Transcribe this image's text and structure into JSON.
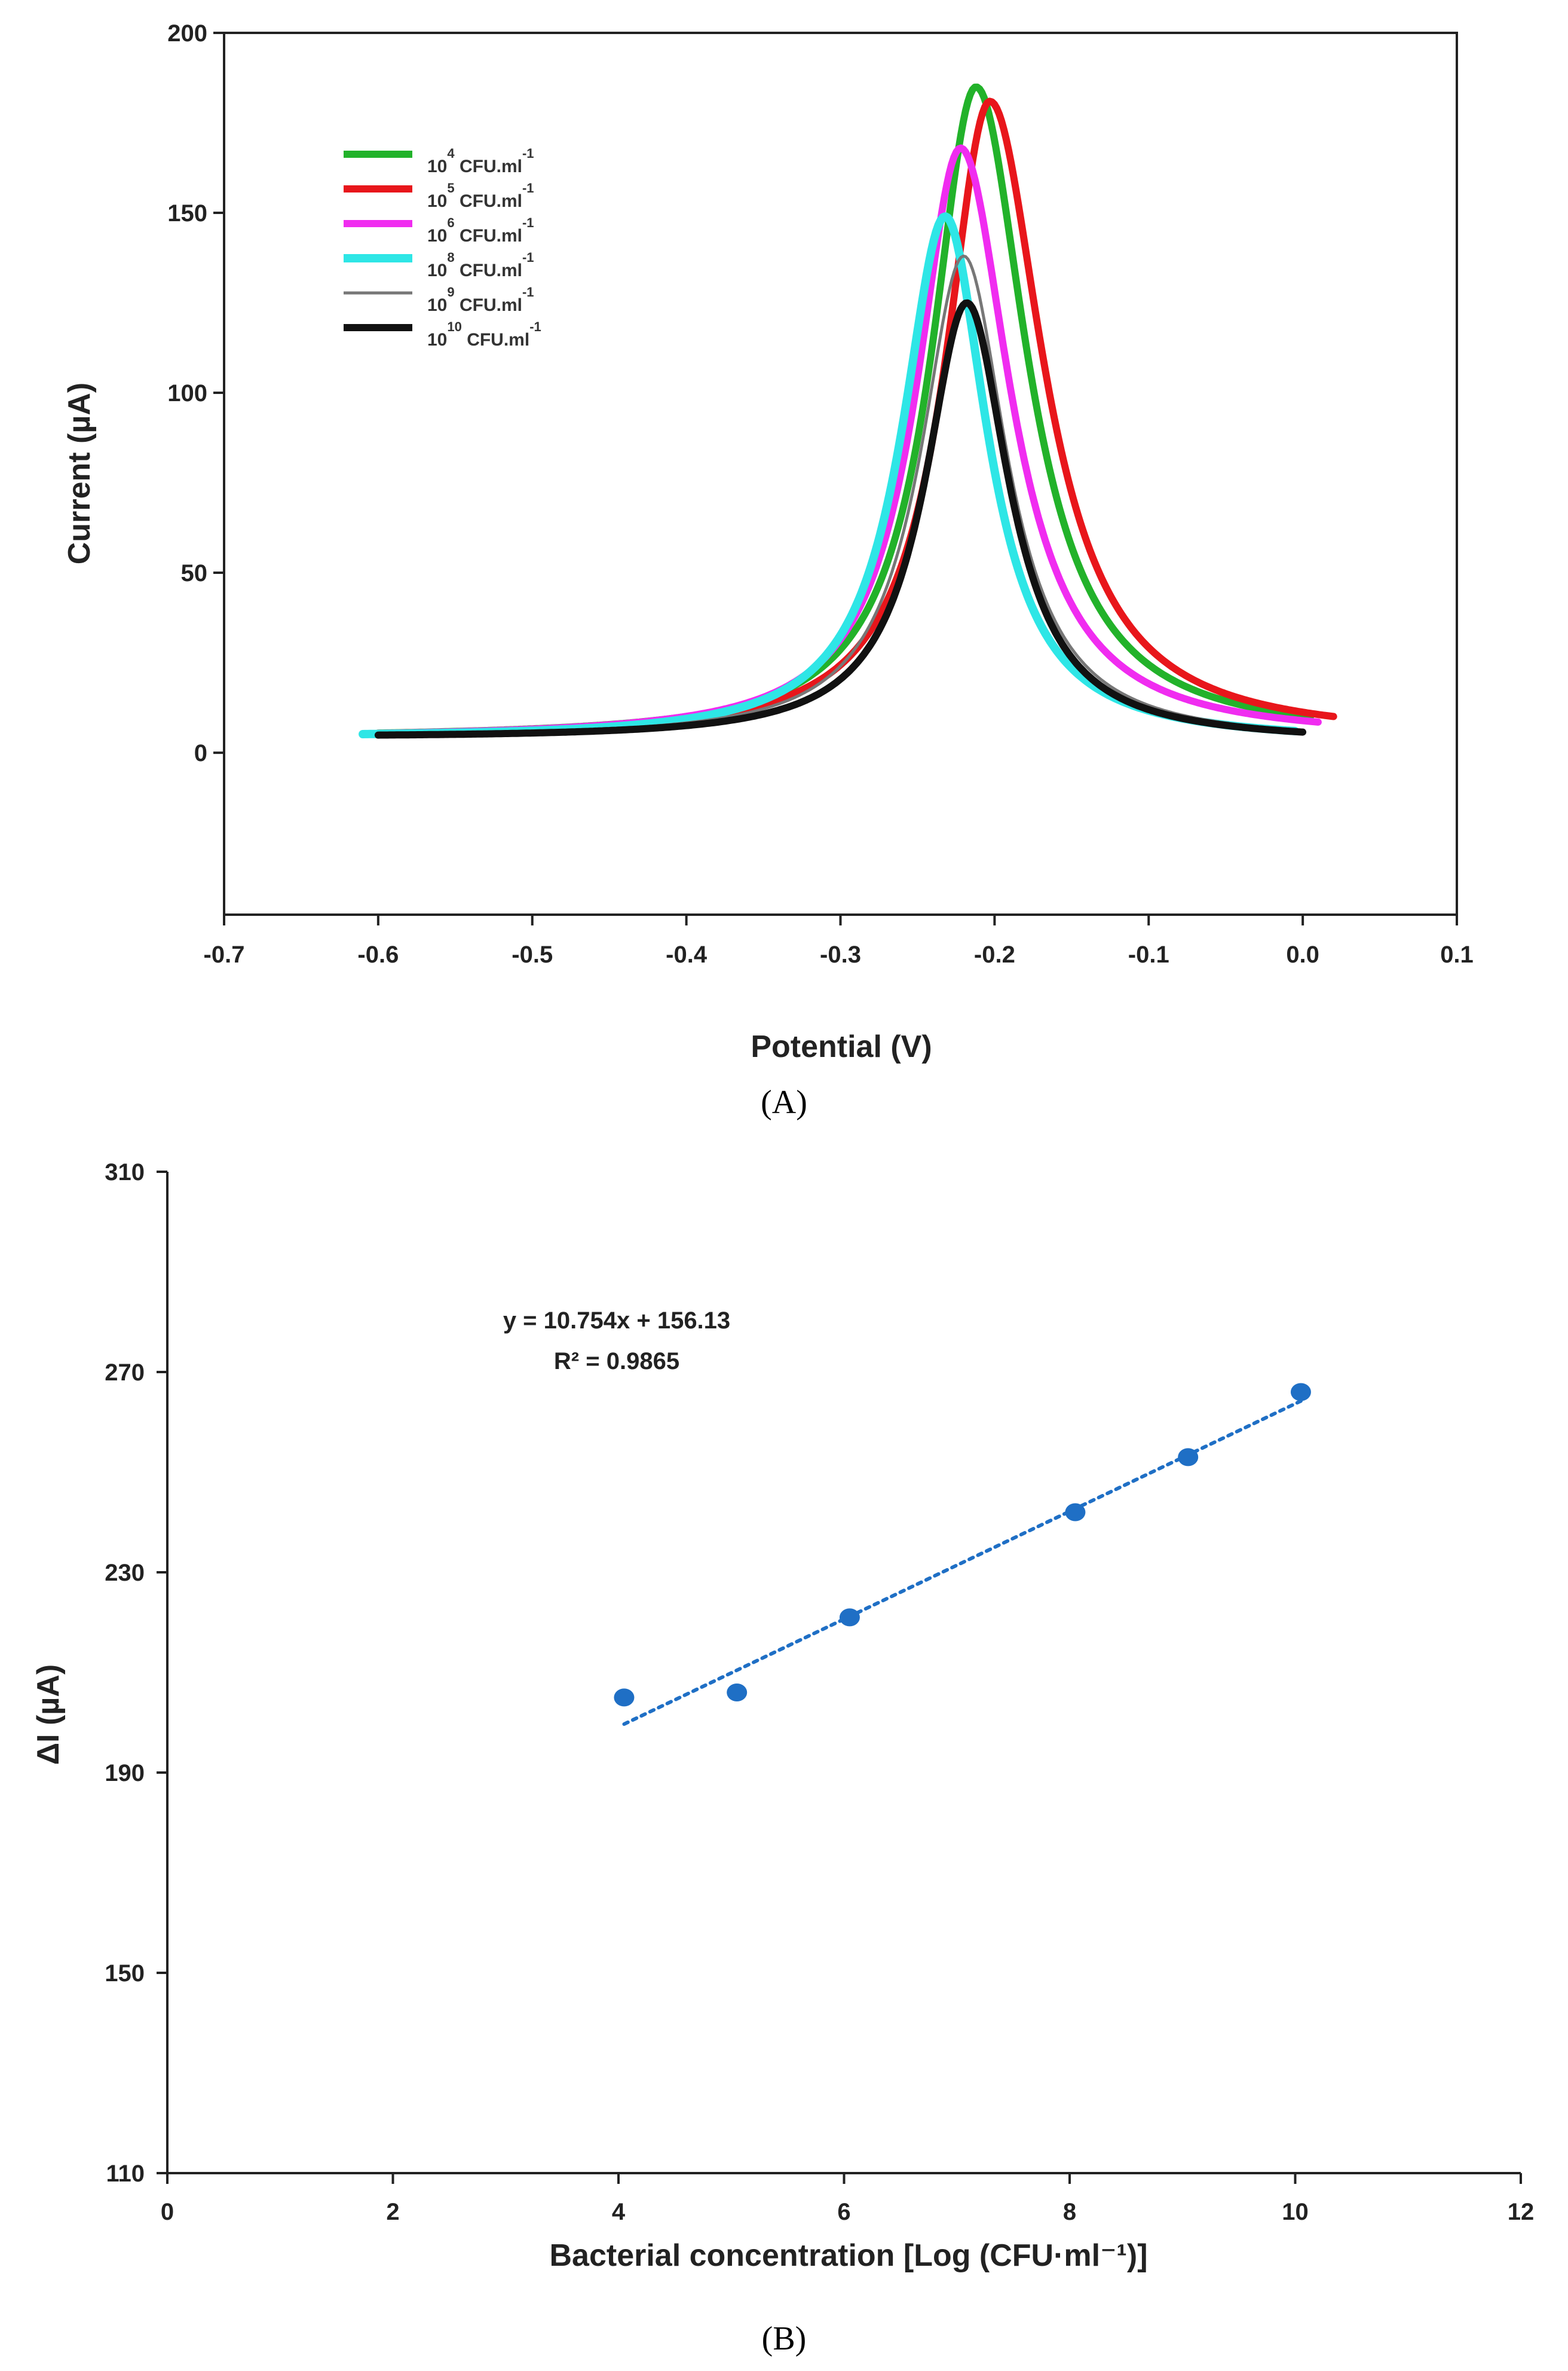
{
  "chart_data": [
    {
      "type": "line",
      "panel_label": "(A)",
      "xlabel": "Potential (V)",
      "ylabel": "Current (µA)",
      "xlim": [
        -0.7,
        0.1
      ],
      "ylim": [
        -45,
        200
      ],
      "xticks": [
        "-0.7",
        "-0.6",
        "-0.5",
        "-0.4",
        "-0.3",
        "-0.2",
        "-0.1",
        "0.0",
        "0.1"
      ],
      "yticks": [
        "0",
        "50",
        "100",
        "150",
        "200"
      ],
      "grid": false,
      "legend_position": "top-left",
      "series": [
        {
          "name": "10^4 CFU.ml^-1",
          "base": "10",
          "exp": "4",
          "unit": "CFU.ml",
          "unit_exp": "-1",
          "color": "#22b22a",
          "peak_x": -0.212,
          "peak_y": 185,
          "hwhm_left": 0.035,
          "hwhm_right": 0.04,
          "x_start": -0.6,
          "x_end": 0.005,
          "start_y": 4,
          "end_y": 4,
          "width": 12
        },
        {
          "name": "10^5 CFU.ml^-1",
          "base": "10",
          "exp": "5",
          "unit": "CFU.ml",
          "unit_exp": "-1",
          "color": "#e8161b",
          "peak_x": -0.203,
          "peak_y": 181,
          "hwhm_left": 0.035,
          "hwhm_right": 0.042,
          "x_start": -0.6,
          "x_end": 0.02,
          "start_y": 4,
          "end_y": 4,
          "width": 12
        },
        {
          "name": "10^6 CFU.ml^-1",
          "base": "10",
          "exp": "6",
          "unit": "CFU.ml",
          "unit_exp": "-1",
          "color": "#f02cf0",
          "peak_x": -0.222,
          "peak_y": 168,
          "hwhm_left": 0.035,
          "hwhm_right": 0.039,
          "x_start": -0.6,
          "x_end": 0.01,
          "start_y": 4,
          "end_y": 4,
          "width": 12
        },
        {
          "name": "10^8 CFU.ml^-1",
          "base": "10",
          "exp": "8",
          "unit": "CFU.ml",
          "unit_exp": "-1",
          "color": "#2ee6e6",
          "peak_x": -0.232,
          "peak_y": 149,
          "hwhm_left": 0.034,
          "hwhm_right": 0.033,
          "x_start": -0.61,
          "x_end": -0.005,
          "start_y": 4,
          "end_y": 3,
          "width": 14
        },
        {
          "name": "10^9 CFU.ml^-1",
          "base": "10",
          "exp": "9",
          "unit": "CFU.ml",
          "unit_exp": "-1",
          "color": "#777777",
          "peak_x": -0.22,
          "peak_y": 138,
          "hwhm_left": 0.034,
          "hwhm_right": 0.034,
          "x_start": -0.6,
          "x_end": -0.002,
          "start_y": 4,
          "end_y": 3,
          "width": 5
        },
        {
          "name": "10^10 CFU.ml^-1",
          "base": "10",
          "exp": "10",
          "unit": "CFU.ml",
          "unit_exp": "-1",
          "color": "#111111",
          "peak_x": -0.218,
          "peak_y": 125,
          "hwhm_left": 0.033,
          "hwhm_right": 0.033,
          "x_start": -0.6,
          "x_end": 0.0,
          "start_y": 4,
          "end_y": 3,
          "width": 12
        }
      ]
    },
    {
      "type": "scatter",
      "panel_label": "(B)",
      "xlabel": "Bacterial concentration [Log (CFU·ml⁻¹)]",
      "ylabel": "ΔI (µA)",
      "xlim": [
        0,
        12
      ],
      "ylim": [
        110,
        310
      ],
      "xticks": [
        "0",
        "2",
        "4",
        "6",
        "8",
        "10",
        "12"
      ],
      "yticks": [
        "110",
        "150",
        "190",
        "230",
        "270",
        "310"
      ],
      "grid": false,
      "points": {
        "x": [
          4.05,
          5.05,
          6.05,
          8.05,
          9.05,
          10.05
        ],
        "y": [
          205,
          206,
          221,
          242,
          253,
          266
        ],
        "color": "#1f6fc5"
      },
      "trendline": {
        "slope": 10.754,
        "intercept": 156.13,
        "x_range": [
          4.05,
          10.05
        ],
        "color": "#1f6fc5",
        "style": "dotted"
      },
      "annotations": {
        "equation": "y = 10.754x + 156.13",
        "r_squared": "R² = 0.9865"
      }
    }
  ]
}
